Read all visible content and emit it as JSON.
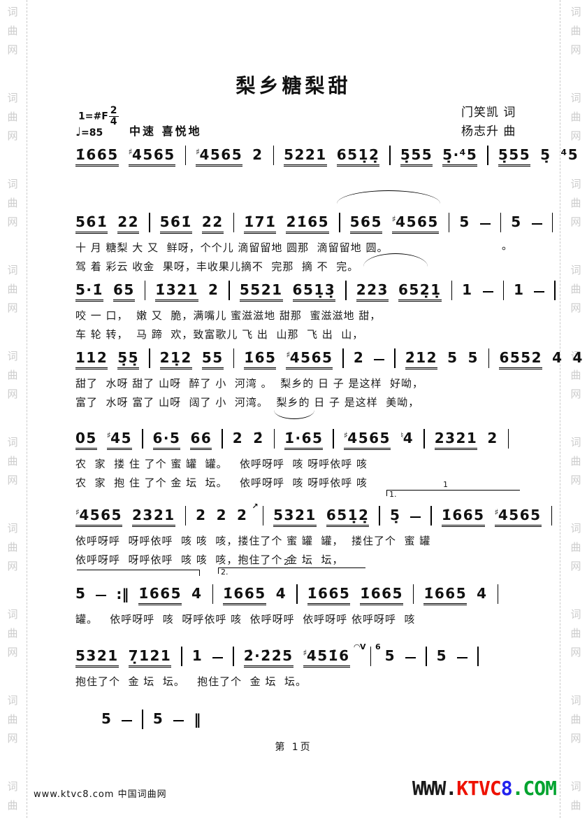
{
  "page": {
    "title": "梨乡糖梨甜",
    "lyricist": "门笑凯 词",
    "composer": "杨志升 曲",
    "key_signature": "1=#F",
    "time_signature_num": "2",
    "time_signature_den": "4",
    "tempo_note": "♩",
    "tempo_value": "=85",
    "tempo_text": "中速 喜悦地",
    "page_number": "第 1页"
  },
  "endings": {
    "first_label": "1.",
    "first_num": "1",
    "second_label": "2.",
    "second_num": "2"
  },
  "stray_mark": "。",
  "watermark": {
    "side_text": "词曲网",
    "footer_left": "www.ktvc8.com 中国词曲网",
    "logo_parts": [
      {
        "text": "WWW.",
        "color": "#1a1a1a"
      },
      {
        "text": "KTVC",
        "color": "#ee1100"
      },
      {
        "text": "8",
        "color": "#2222ee"
      },
      {
        "text": ".COM",
        "color": "#00a32e"
      }
    ]
  },
  "systems": [
    {
      "notes": "1̇665 ♯4565 | ♯4565 2 | 5221 651̣2̣ | 5̣55 5̣·⁴5 | 5̣55 5̣ ⁴5 ) |",
      "lyrics": []
    },
    {
      "notes": "56̇1̇ 22 | 56̇1̇ 22 | 1̇71̇ 2̇1̇65 | 565 ♯4565 | 5 – | 5 – |",
      "lyrics": [
        "十 月 糖梨 大 又  鲜呀，个个儿 滴留留地 圆那  滴留留地 圆。",
        "驾 着 彩云 收金  果呀，丰收果儿摘不  完那  摘 不  完。"
      ]
    },
    {
      "notes": "5·1̇ 65 | 1̇321 2 | 5521 651̣3̣ | 223 652̣1̣ | 1 – | 1 – |",
      "lyrics": [
        "咬 一 口，  嫩 又  脆，满嘴儿 蜜滋滋地 甜那  蜜滋滋地 甜，",
        "车 轮 转，  马 蹄  欢，致富歌儿 飞 出  山那  飞 出  山，"
      ]
    },
    {
      "notes": "112 5̣5̣ | 21̣2 55 | 1̇65 ♯4565 | 2 – | 2̇12 5 5 | 6552 4 4 |",
      "lyrics": [
        "甜了  水呀 甜了 山呀  醉了 小  河湾 。  梨乡的 日 子 是这样  好呦，",
        "富了  水呀 富了 山呀  阔了 小  河湾。  梨乡的 日 子 是这样  美呦，"
      ]
    },
    {
      "notes": "05 ♯45 | 6·5 66 | 2 2̇ | 1̇·65 | ♯4565 ♮4 | 2321 2 |",
      "lyrics": [
        "农  家  搂 住 了个 蜜 罐  罐。   依呼呀呼  咳 呀呼依呼 咳",
        "农  家  抱 住 了个 金 坛  坛。   依呼呀呼  咳 呀呼依呼 咳"
      ]
    },
    {
      "notes": "♯4565 2321 | 2 2 2 ^↗ | 5321 651̣2̣ | 5̣ – | 1̇665 ♯4565 |",
      "lyrics": [
        "依呼呀呼  呀呼依呼  咳 咳  咳，搂住了个 蜜 罐  罐，  搂住了个  蜜 罐",
        "依呼呀呼  呀呼依呼  咳 咳  咳，抱住了个 金 坛  坛，"
      ]
    },
    {
      "notes": "5 – :‖ 1̇665 4 | 1̇665 4 | 1̇665 1̇665 | 1̇665 4 |",
      "lyrics": [
        "罐。   依呼呀呼  咳  呀呼依呼 咳  依呼呀呼  依呼呀呼 依呼呀呼  咳"
      ]
    },
    {
      "notes": "5321 7̣121 | 1 – | 2̇·2̇2̇5 ♯451̇6 ^◠V | ^6 5 – | 5 – |",
      "lyrics": [
        "抱住了个  金 坛  坛。   抱住了个  金 坛  坛。"
      ]
    },
    {
      "notes": "5 – | 5 – ‖",
      "lyrics": []
    }
  ]
}
